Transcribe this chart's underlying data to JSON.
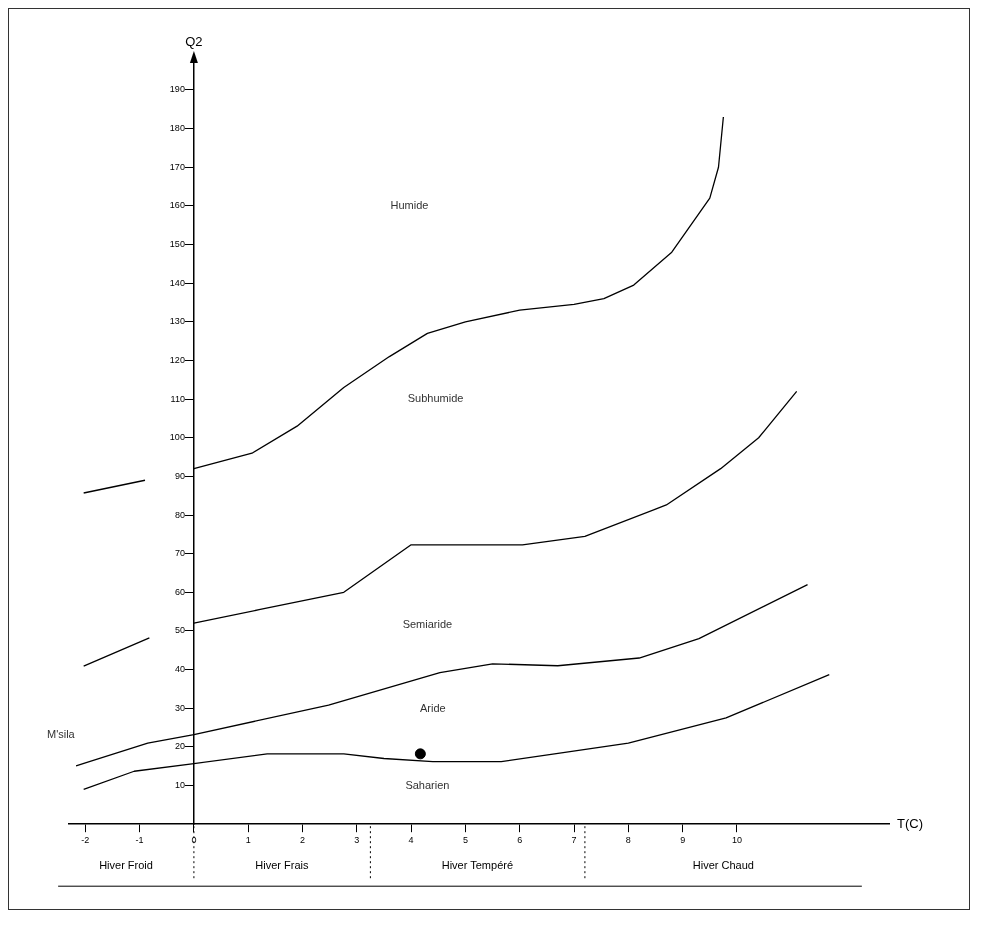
{
  "chart_data": {
    "type": "line",
    "xlabel": "T(C)",
    "ylabel": "Q2",
    "xlim": [
      -2.3,
      12.8
    ],
    "ylim": [
      0,
      198
    ],
    "xticks": [
      -2,
      -1,
      0,
      1,
      2,
      3,
      4,
      5,
      6,
      7,
      8,
      9,
      10
    ],
    "yticks": [
      10,
      20,
      30,
      40,
      50,
      60,
      70,
      80,
      90,
      100,
      110,
      120,
      130,
      140,
      150,
      160,
      170,
      180,
      190
    ],
    "grid": false,
    "legend": false,
    "marker": "none",
    "line_style": "solid",
    "series": [
      {
        "color": "#000000",
        "x": [
          -2.03,
          -0.9,
          -0.5,
          0,
          1.07,
          1.9,
          2.76,
          3.6,
          4.3,
          5,
          6,
          7,
          7.55,
          8.1,
          8.8,
          9.5,
          9.66,
          9.75
        ],
        "values": [
          85.7,
          89,
          null,
          92,
          96,
          103,
          113,
          121,
          127,
          130,
          133,
          134.5,
          136,
          139.5,
          148,
          162,
          170,
          183
        ]
      },
      {
        "color": "#000000",
        "x": [
          -2.03,
          -0.82,
          -0.5,
          0,
          1.2,
          2.76,
          4,
          4.9,
          6.05,
          7.2,
          8.7,
          9.7,
          10.4,
          11.1
        ],
        "values": [
          40.9,
          48.2,
          null,
          52,
          55.5,
          60,
          72.3,
          72.3,
          72.3,
          74.5,
          82.6,
          92,
          100,
          112
        ]
      },
      {
        "color": "#000000",
        "x": [
          -2.17,
          -0.85,
          0,
          2.48,
          4.53,
          5.5,
          6.7,
          8.2,
          9.3,
          11.3
        ],
        "values": [
          15.1,
          21,
          23.2,
          30.8,
          39.2,
          41.5,
          41,
          43,
          48,
          62
        ]
      },
      {
        "color": "#000000",
        "x": [
          -2.03,
          -1.1,
          0,
          1.35,
          2.76,
          3.5,
          4.4,
          5.66,
          6.8,
          8.0,
          9.8,
          11.7
        ],
        "values": [
          9,
          13.7,
          15.7,
          18.2,
          18.2,
          17,
          16.2,
          16.2,
          18.5,
          21,
          27.5,
          38.7
        ]
      },
      {
        "type": "scatter",
        "marker": "circle",
        "color": "#000000",
        "x": [
          4.17
        ],
        "values": [
          18.2
        ]
      }
    ],
    "annotations": [
      "Humide",
      "Subhumide",
      "Semiaride",
      "Aride",
      "Saharien",
      "M'sila",
      "Hiver Froid",
      "Hiver Frais",
      "Hiver Tempéré",
      "Hiver Chaud"
    ]
  }
}
